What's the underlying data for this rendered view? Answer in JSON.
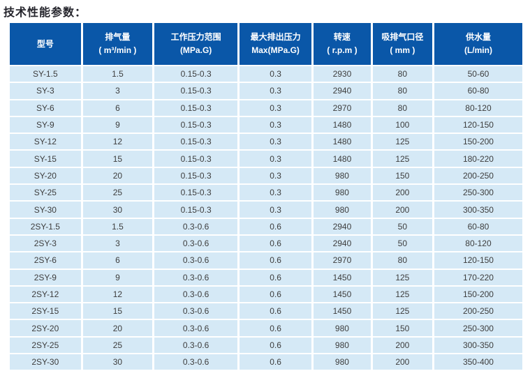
{
  "title": "技术性能参数：",
  "colors": {
    "page_bg": "#ffffff",
    "header_bg": "#0a57a8",
    "header_text": "#ffffff",
    "row_bg": "#d5e9f6",
    "cell_text": "#3d3d3d",
    "title_text": "#25252c"
  },
  "table": {
    "columns": [
      {
        "title": "型号",
        "sub": ""
      },
      {
        "title": "排气量",
        "sub": "( m³/min )"
      },
      {
        "title": "工作压力范围",
        "sub": "(MPa.G)"
      },
      {
        "title": "最大排出压力",
        "sub": "Max(MPa.G)"
      },
      {
        "title": "转速",
        "sub": "( r.p.m )"
      },
      {
        "title": "吸排气口径",
        "sub": "( mm )"
      },
      {
        "title": "供水量",
        "sub": "(L/min)"
      }
    ],
    "rows": [
      [
        "SY-1.5",
        "1.5",
        "0.15-0.3",
        "0.3",
        "2930",
        "80",
        "50-60"
      ],
      [
        "SY-3",
        "3",
        "0.15-0.3",
        "0.3",
        "2940",
        "80",
        "60-80"
      ],
      [
        "SY-6",
        "6",
        "0.15-0.3",
        "0.3",
        "2970",
        "80",
        "80-120"
      ],
      [
        "SY-9",
        "9",
        "0.15-0.3",
        "0.3",
        "1480",
        "100",
        "120-150"
      ],
      [
        "SY-12",
        "12",
        "0.15-0.3",
        "0.3",
        "1480",
        "125",
        "150-200"
      ],
      [
        "SY-15",
        "15",
        "0.15-0.3",
        "0.3",
        "1480",
        "125",
        "180-220"
      ],
      [
        "SY-20",
        "20",
        "0.15-0.3",
        "0.3",
        "980",
        "150",
        "200-250"
      ],
      [
        "SY-25",
        "25",
        "0.15-0.3",
        "0.3",
        "980",
        "200",
        "250-300"
      ],
      [
        "SY-30",
        "30",
        "0.15-0.3",
        "0.3",
        "980",
        "200",
        "300-350"
      ],
      [
        "2SY-1.5",
        "1.5",
        "0.3-0.6",
        "0.6",
        "2940",
        "50",
        "60-80"
      ],
      [
        "2SY-3",
        "3",
        "0.3-0.6",
        "0.6",
        "2940",
        "50",
        "80-120"
      ],
      [
        "2SY-6",
        "6",
        "0.3-0.6",
        "0.6",
        "2970",
        "80",
        "120-150"
      ],
      [
        "2SY-9",
        "9",
        "0.3-0.6",
        "0.6",
        "1450",
        "125",
        "170-220"
      ],
      [
        "2SY-12",
        "12",
        "0.3-0.6",
        "0.6",
        "1450",
        "125",
        "150-200"
      ],
      [
        "2SY-15",
        "15",
        "0.3-0.6",
        "0.6",
        "1450",
        "125",
        "200-250"
      ],
      [
        "2SY-20",
        "20",
        "0.3-0.6",
        "0.6",
        "980",
        "150",
        "250-300"
      ],
      [
        "2SY-25",
        "25",
        "0.3-0.6",
        "0.6",
        "980",
        "200",
        "300-350"
      ],
      [
        "2SY-30",
        "30",
        "0.3-0.6",
        "0.6",
        "980",
        "200",
        "350-400"
      ]
    ]
  }
}
